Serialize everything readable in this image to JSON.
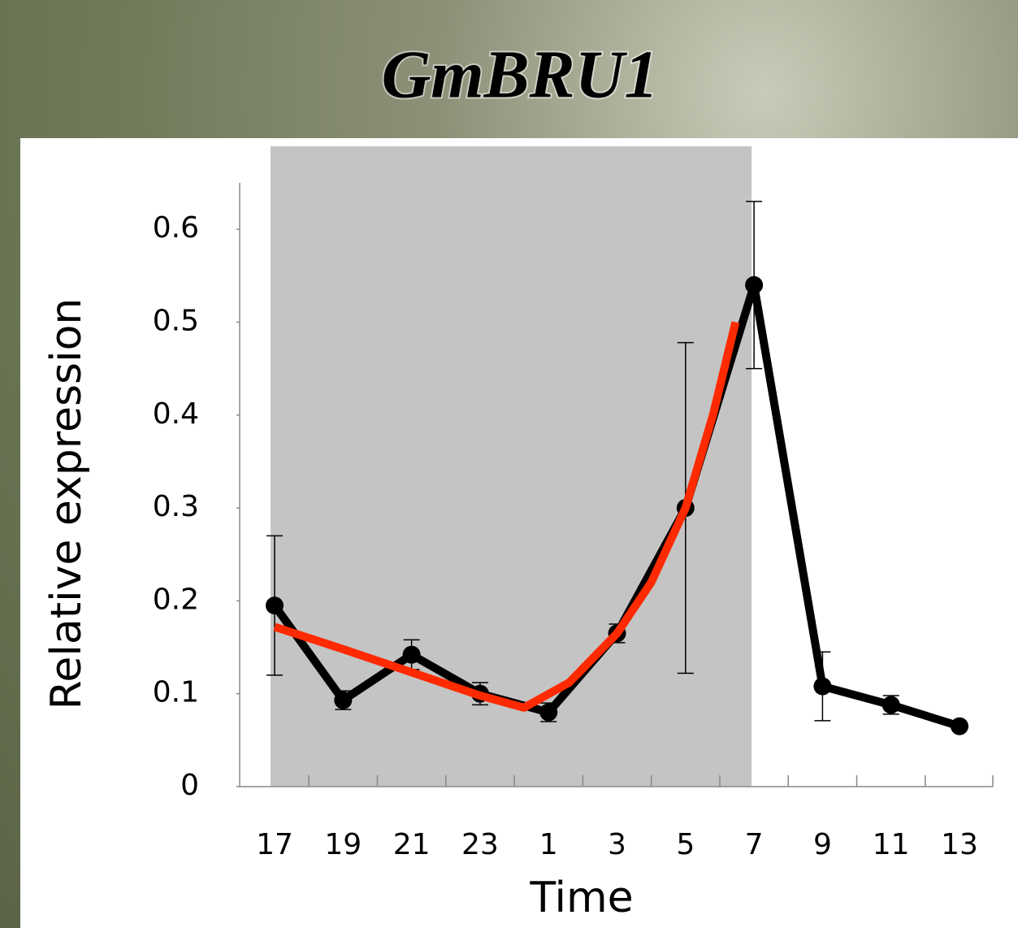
{
  "chart_data": {
    "type": "line",
    "title": "GmBRU1",
    "x_label": "Time",
    "y_label": "Relative expression",
    "categories": [
      "17",
      "19",
      "21",
      "23",
      "1",
      "3",
      "5",
      "7",
      "9",
      "11",
      "13"
    ],
    "series": [
      {
        "color": "#000000",
        "values": [
          0.195,
          0.093,
          0.142,
          0.1,
          0.08,
          0.165,
          0.3,
          0.54,
          0.108,
          0.088,
          0.065
        ],
        "errors": [
          0.075,
          0.01,
          0.016,
          0.012,
          0.01,
          0.01,
          0.178,
          0.09,
          0.037,
          0.01,
          0.003
        ]
      }
    ],
    "fit": {
      "color": "#ff2a00",
      "x": [
        0,
        1,
        2,
        3,
        3.64,
        4.3,
        5,
        5.5,
        6,
        6.4,
        6.73
      ],
      "values": [
        0.172,
        0.148,
        0.123,
        0.098,
        0.085,
        0.112,
        0.165,
        0.22,
        0.3,
        0.4,
        0.5
      ]
    },
    "shade": {
      "from": "17",
      "to": "7",
      "color": "#c4c4c4"
    },
    "ylim": [
      0,
      0.65
    ],
    "yticks": [
      0,
      0.1,
      0.2,
      0.3,
      0.4,
      0.5,
      0.6
    ]
  }
}
